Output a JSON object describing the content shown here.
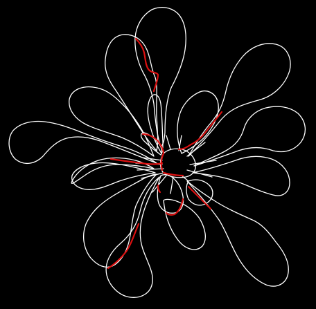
{
  "image": {
    "background_color": "#000000",
    "outline_color": "#ffffff",
    "highlight_color": "#dd1111"
  }
}
